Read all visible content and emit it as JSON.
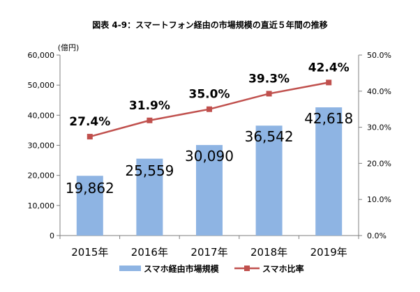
{
  "chart_data": {
    "type": "bar",
    "title": "図表 4-9：スマートフォン経由の市場規模の直近５年間の推移",
    "y_unit_label": "(億円)",
    "categories": [
      "2015年",
      "2016年",
      "2017年",
      "2018年",
      "2019年"
    ],
    "series": [
      {
        "name": "スマホ経由市場規模",
        "type": "bar",
        "axis": "left",
        "values": [
          19862,
          25559,
          30090,
          36542,
          42618
        ],
        "labels": [
          "19,862",
          "25,559",
          "30,090",
          "36,542",
          "42,618"
        ],
        "color": "#8EB4E3"
      },
      {
        "name": "スマホ比率",
        "type": "line",
        "axis": "right",
        "values": [
          27.4,
          31.9,
          35.0,
          39.3,
          42.4
        ],
        "labels": [
          "27.4%",
          "31.9%",
          "35.0%",
          "39.3%",
          "42.4%"
        ],
        "color": "#C0504D"
      }
    ],
    "y_left": {
      "min": 0,
      "max": 60000,
      "ticks": [
        0,
        10000,
        20000,
        30000,
        40000,
        50000,
        60000
      ],
      "tick_labels": [
        "0",
        "10,000",
        "20,000",
        "30,000",
        "40,000",
        "50,000",
        "60,000"
      ]
    },
    "y_right": {
      "min": 0,
      "max": 50,
      "ticks": [
        0,
        10,
        20,
        30,
        40,
        50
      ],
      "tick_labels": [
        "0.0%",
        "10.0%",
        "20.0%",
        "30.0%",
        "40.0%",
        "50.0%"
      ]
    },
    "grid": false,
    "legend_position": "bottom"
  }
}
